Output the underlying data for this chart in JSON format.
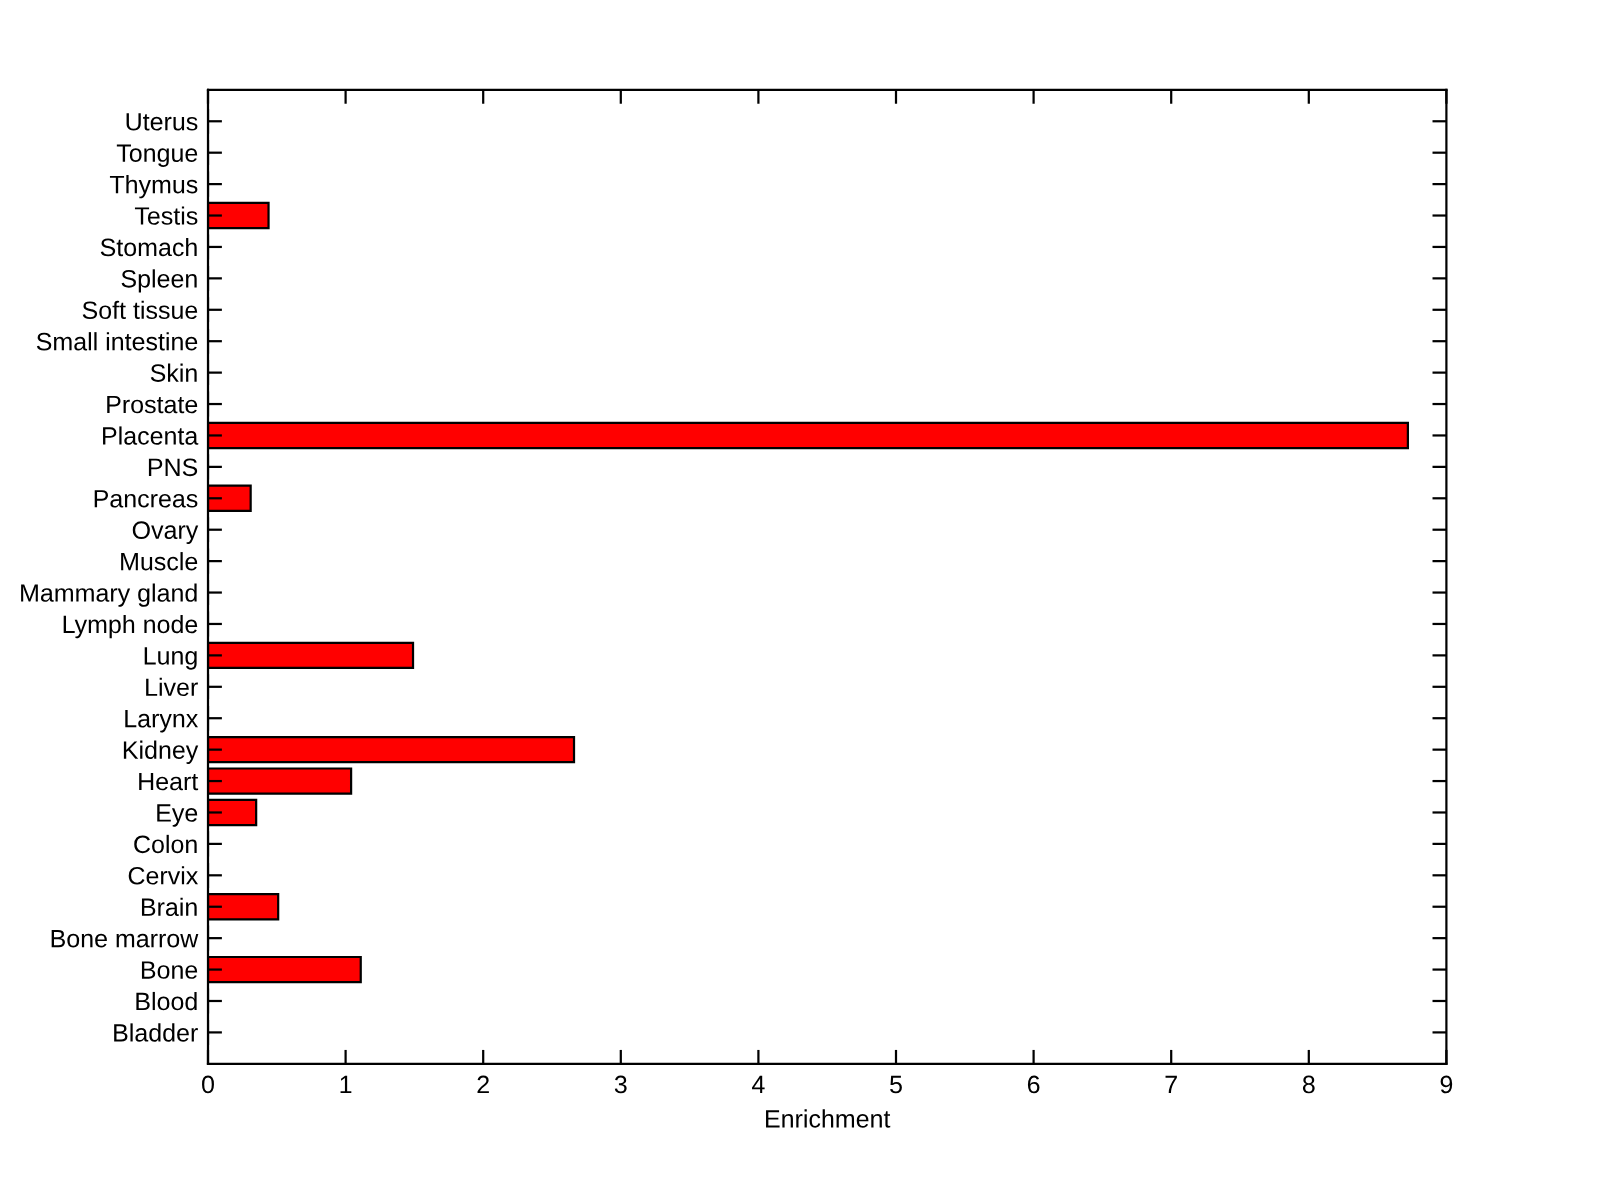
{
  "chart_data": {
    "type": "bar",
    "orientation": "horizontal",
    "xlabel": "Enrichment",
    "categories": [
      "Uterus",
      "Tongue",
      "Thymus",
      "Testis",
      "Stomach",
      "Spleen",
      "Soft tissue",
      "Small intestine",
      "Skin",
      "Prostate",
      "Placenta",
      "PNS",
      "Pancreas",
      "Ovary",
      "Muscle",
      "Mammary gland",
      "Lymph node",
      "Lung",
      "Liver",
      "Larynx",
      "Kidney",
      "Heart",
      "Eye",
      "Colon",
      "Cervix",
      "Brain",
      "Bone marrow",
      "Bone",
      "Blood",
      "Bladder"
    ],
    "values": [
      0,
      0,
      0,
      0.44,
      0,
      0,
      0,
      0,
      0,
      0,
      8.72,
      0,
      0.31,
      0,
      0,
      0,
      0,
      1.49,
      0,
      0,
      2.66,
      1.04,
      0.35,
      0,
      0,
      0.51,
      0,
      1.11,
      0,
      0
    ],
    "color": "#ff0000",
    "xlim": [
      0,
      9
    ],
    "xticks": [
      0,
      1,
      2,
      3,
      4,
      5,
      6,
      7,
      8,
      9
    ],
    "grid": false
  }
}
